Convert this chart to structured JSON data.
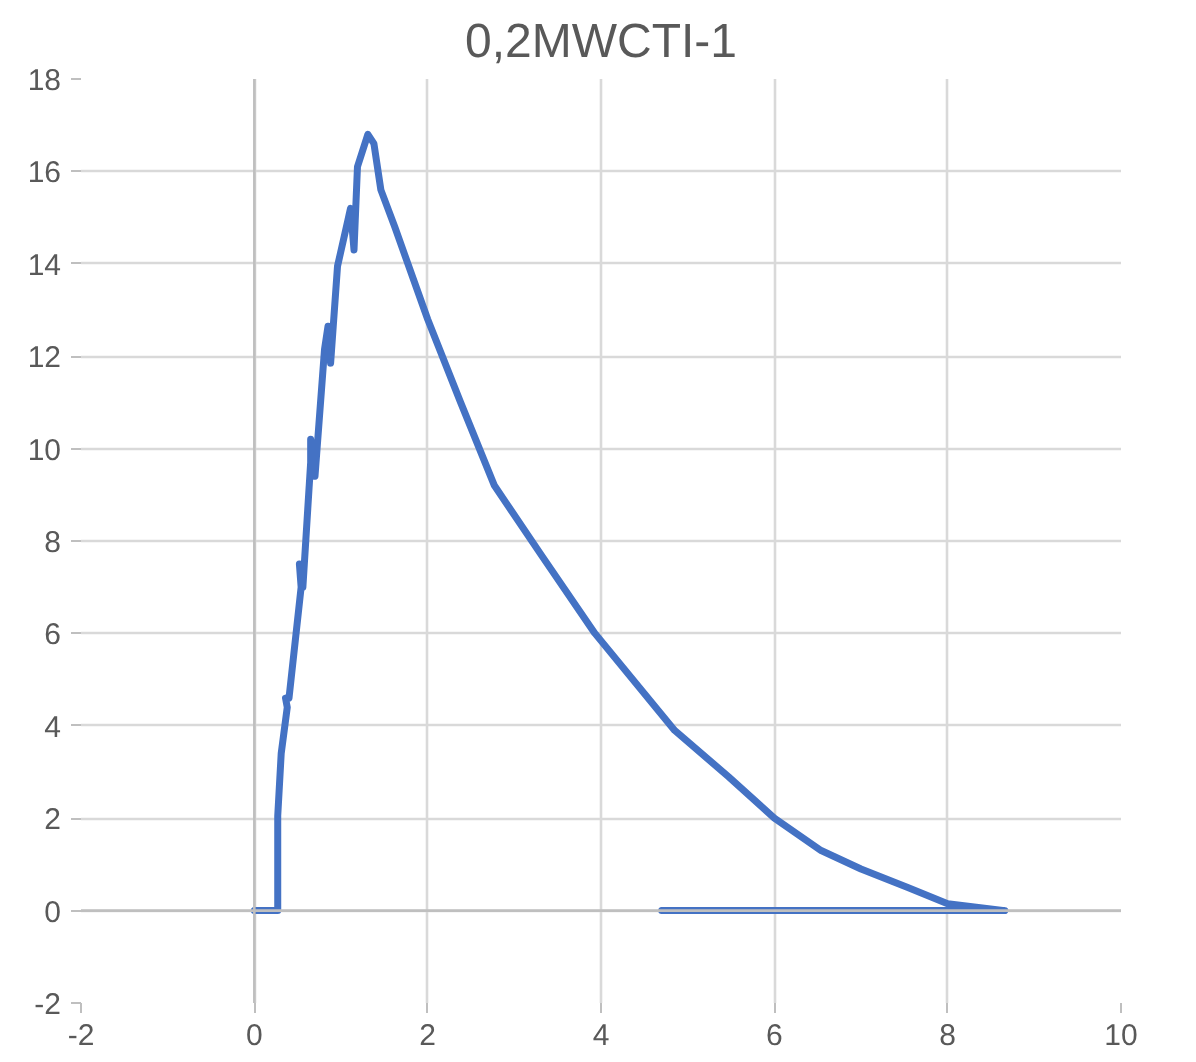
{
  "chart_data": {
    "type": "line",
    "title": "0,2MWCTI-1",
    "x": [
      0,
      0.27,
      0.27,
      0.31,
      0.38,
      0.36,
      0.4,
      0.54,
      0.52,
      0.56,
      0.65,
      0.65,
      0.7,
      0.81,
      0.85,
      0.88,
      0.96,
      1.08,
      1.11,
      1.15,
      1.19,
      1.31,
      1.38,
      1.46,
      1.62,
      2.0,
      2.38,
      2.77,
      3.31,
      3.93,
      4.85,
      5.47,
      6.0,
      6.54,
      7.0,
      7.54,
      8.0,
      8.66,
      4.7
    ],
    "series": [
      {
        "color": "#4472c4",
        "values": [
          0,
          0,
          2.05,
          3.4,
          4.4,
          4.6,
          4.6,
          7.0,
          7.5,
          7.0,
          9.7,
          10.2,
          9.4,
          12.15,
          12.65,
          11.85,
          13.95,
          14.95,
          15.2,
          14.3,
          16.1,
          16.8,
          16.6,
          15.6,
          14.8,
          12.8,
          11.0,
          9.2,
          7.7,
          6.0,
          3.9,
          2.9,
          2.0,
          1.3,
          0.9,
          0.5,
          0.15,
          0,
          0
        ]
      }
    ],
    "xlim": [
      -2,
      10
    ],
    "ylim": [
      -2,
      18
    ],
    "xticks": [
      -2,
      0,
      2,
      4,
      6,
      8,
      10
    ],
    "yticks": [
      -2,
      0,
      2,
      4,
      6,
      8,
      10,
      12,
      14,
      16,
      18
    ],
    "grid": true,
    "marker": "none",
    "line_style": "solid"
  }
}
